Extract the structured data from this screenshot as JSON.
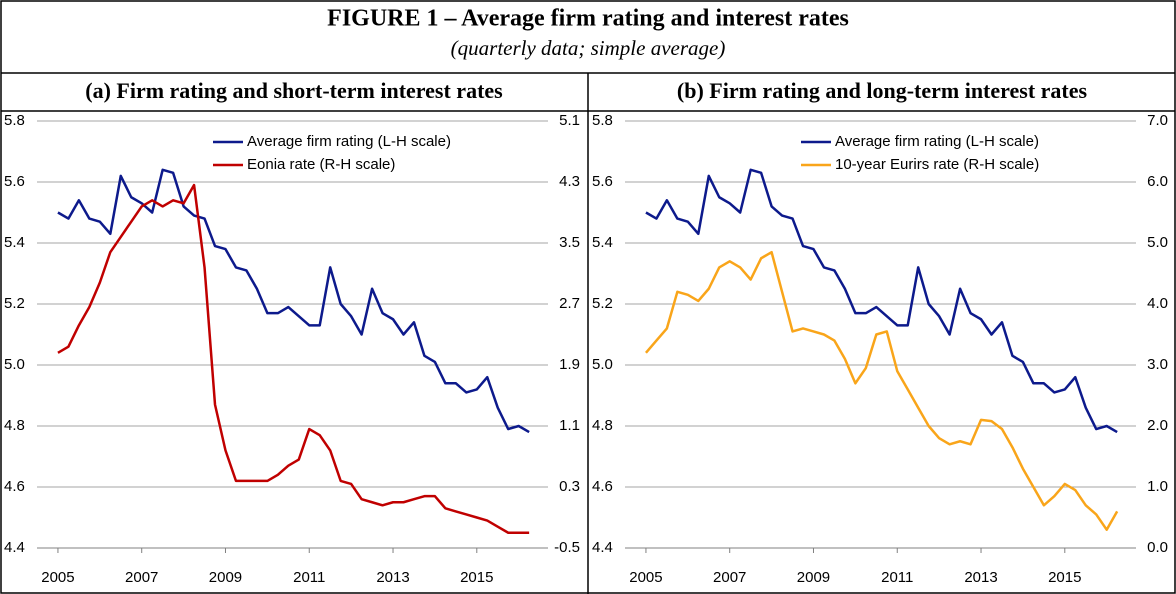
{
  "figure": {
    "title": "FIGURE 1 – Average firm rating and interest rates",
    "subtitle": "(quarterly data; simple average)"
  },
  "chart_data": [
    {
      "type": "line",
      "title": "(a) Firm rating and short-term interest rates",
      "x": [
        2005,
        2005.25,
        2005.5,
        2005.75,
        2006,
        2006.25,
        2006.5,
        2006.75,
        2007,
        2007.25,
        2007.5,
        2007.75,
        2008,
        2008.25,
        2008.5,
        2008.75,
        2009,
        2009.25,
        2009.5,
        2009.75,
        2010,
        2010.25,
        2010.5,
        2010.75,
        2011,
        2011.25,
        2011.5,
        2011.75,
        2012,
        2012.25,
        2012.5,
        2012.75,
        2013,
        2013.25,
        2013.5,
        2013.75,
        2014,
        2014.25,
        2014.5,
        2014.75,
        2015,
        2015.25,
        2015.5,
        2015.75,
        2016,
        2016.25
      ],
      "xlim": [
        2004.5,
        2016.7
      ],
      "xticks": [
        2005,
        2007,
        2009,
        2011,
        2013,
        2015
      ],
      "ylim": [
        4.4,
        5.8
      ],
      "yticks": [
        4.4,
        4.6,
        4.8,
        {
          "value": 5,
          "label": "5.0"
        },
        5.2,
        5.4,
        5.6,
        5.8
      ],
      "y2lim": [
        -0.5,
        5.1
      ],
      "y2ticks": [
        -0.5,
        0.3,
        1.1,
        1.9,
        2.7,
        3.5,
        4.3,
        5.1
      ],
      "grid": true,
      "legend": "top-right",
      "series": [
        {
          "name": "Average firm rating (L-H scale)",
          "color": "#0d1a8c",
          "values": [
            5.5,
            5.48,
            5.54,
            5.48,
            5.47,
            5.43,
            5.62,
            5.55,
            5.53,
            5.5,
            5.64,
            5.63,
            5.52,
            5.49,
            5.48,
            5.39,
            5.38,
            5.32,
            5.31,
            5.25,
            5.17,
            5.17,
            5.19,
            5.16,
            5.13,
            5.13,
            5.32,
            5.2,
            5.16,
            5.1,
            5.25,
            5.17,
            5.15,
            5.1,
            5.14,
            5.03,
            5.01,
            4.94,
            4.94,
            4.91,
            4.92,
            4.96,
            4.86,
            4.79,
            4.8,
            4.78
          ]
        },
        {
          "name": "Eonia rate (R-H scale)",
          "color": "#c00000",
          "axis": "y2",
          "values": [
            2.06,
            2.14,
            2.42,
            2.66,
            2.98,
            3.38,
            3.58,
            3.78,
            3.98,
            4.06,
            3.98,
            4.06,
            4.02,
            4.26,
            3.18,
            1.38,
            0.78,
            0.38,
            0.38,
            0.38,
            0.38,
            0.46,
            0.58,
            0.66,
            1.06,
            0.98,
            0.78,
            0.38,
            0.34,
            0.14,
            0.1,
            0.06,
            0.1,
            0.1,
            0.14,
            0.18,
            0.18,
            0.02,
            -0.02,
            -0.06,
            -0.1,
            -0.14,
            -0.22,
            -0.3,
            -0.3,
            -0.3
          ]
        }
      ]
    },
    {
      "type": "line",
      "title": "(b) Firm rating and long-term interest rates",
      "x": [
        2005,
        2005.25,
        2005.5,
        2005.75,
        2006,
        2006.25,
        2006.5,
        2006.75,
        2007,
        2007.25,
        2007.5,
        2007.75,
        2008,
        2008.25,
        2008.5,
        2008.75,
        2009,
        2009.25,
        2009.5,
        2009.75,
        2010,
        2010.25,
        2010.5,
        2010.75,
        2011,
        2011.25,
        2011.5,
        2011.75,
        2012,
        2012.25,
        2012.5,
        2012.75,
        2013,
        2013.25,
        2013.5,
        2013.75,
        2014,
        2014.25,
        2014.5,
        2014.75,
        2015,
        2015.25,
        2015.5,
        2015.75,
        2016,
        2016.25
      ],
      "xlim": [
        2004.5,
        2016.7
      ],
      "xticks": [
        2005,
        2007,
        2009,
        2011,
        2013,
        2015
      ],
      "ylim": [
        4.4,
        5.8
      ],
      "yticks": [
        4.4,
        4.6,
        4.8,
        {
          "value": 5,
          "label": "5.0"
        },
        5.2,
        5.4,
        5.6,
        5.8
      ],
      "y2lim": [
        0,
        7
      ],
      "y2ticks": [
        {
          "value": 0,
          "label": "0.0"
        },
        {
          "value": 1,
          "label": "1.0"
        },
        {
          "value": 2,
          "label": "2.0"
        },
        {
          "value": 3,
          "label": "3.0"
        },
        {
          "value": 4,
          "label": "4.0"
        },
        {
          "value": 5,
          "label": "5.0"
        },
        {
          "value": 6,
          "label": "6.0"
        },
        {
          "value": 7,
          "label": "7.0"
        }
      ],
      "grid": true,
      "legend": "top-right",
      "series": [
        {
          "name": "Average firm rating (L-H scale)",
          "color": "#0d1a8c",
          "values": [
            5.5,
            5.48,
            5.54,
            5.48,
            5.47,
            5.43,
            5.62,
            5.55,
            5.53,
            5.5,
            5.64,
            5.63,
            5.52,
            5.49,
            5.48,
            5.39,
            5.38,
            5.32,
            5.31,
            5.25,
            5.17,
            5.17,
            5.19,
            5.16,
            5.13,
            5.13,
            5.32,
            5.2,
            5.16,
            5.1,
            5.25,
            5.17,
            5.15,
            5.1,
            5.14,
            5.03,
            5.01,
            4.94,
            4.94,
            4.91,
            4.92,
            4.96,
            4.86,
            4.79,
            4.8,
            4.78
          ]
        },
        {
          "name": "10-year Eurirs rate (R-H scale)",
          "color": "#f9a51a",
          "axis": "y2",
          "values": [
            3.2,
            3.4,
            3.6,
            4.2,
            4.15,
            4.05,
            4.25,
            4.6,
            4.7,
            4.6,
            4.4,
            4.75,
            4.85,
            4.2,
            3.55,
            3.6,
            3.55,
            3.5,
            3.4,
            3.1,
            2.7,
            2.95,
            3.5,
            3.55,
            2.9,
            2.6,
            2.3,
            2.0,
            1.8,
            1.7,
            1.75,
            1.7,
            2.1,
            2.08,
            1.95,
            1.65,
            1.3,
            1.0,
            0.7,
            0.85,
            1.05,
            0.95,
            0.7,
            0.55,
            0.3,
            0.6
          ]
        }
      ]
    }
  ]
}
